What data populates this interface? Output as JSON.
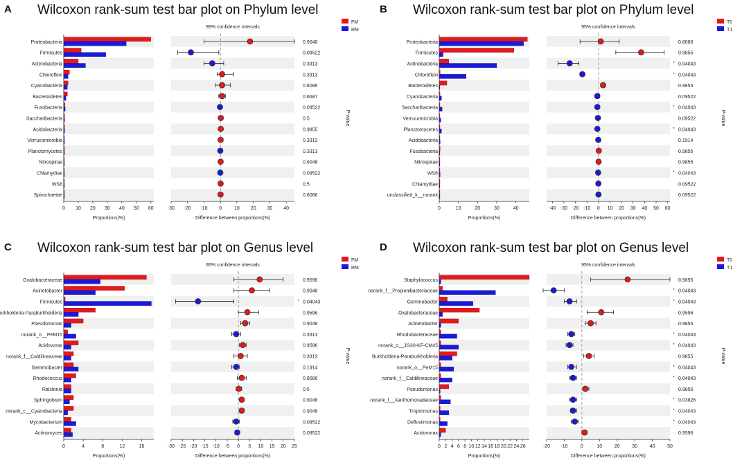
{
  "common": {
    "ci_header": "95% confidence intervals",
    "xlabel_bar": "Proportions(%)",
    "xlabel_diff": "Difference between proportions(%)",
    "pvalue_label": "P-value",
    "colors": {
      "red": "#e3191c",
      "blue": "#1a1adb"
    }
  },
  "chart_data": [
    {
      "id": "A",
      "type": "bar",
      "letter": "A",
      "title": "Wilcoxon rank-sum test bar plot on Phylum level",
      "legend": [
        "FM",
        "RM"
      ],
      "categories": [
        "Proteobacteria",
        "Firmicutes",
        "Actinobacteria",
        "Chloroflexi",
        "Cyanobacteria",
        "Bacteroidetes",
        "Fusobacteria",
        "Saccharibacteria",
        "Acidobacteria",
        "Verrucomicrobia",
        "Planctomycetes",
        "Nitrospirae",
        "Chlamydiae",
        "WS6",
        "Spirochaetae"
      ],
      "series": [
        {
          "name": "FM",
          "values": [
            60,
            12,
            10,
            4,
            3,
            2.5,
            0.8,
            0.6,
            0.6,
            0.5,
            0.5,
            0.4,
            0.3,
            0.2,
            0.2
          ]
        },
        {
          "name": "RM",
          "values": [
            43,
            29,
            15,
            3,
            2.5,
            1.5,
            1.0,
            0.6,
            0.6,
            0.5,
            0.5,
            0.4,
            0.4,
            0.2,
            0.2
          ]
        }
      ],
      "bar_ticks": [
        0,
        10,
        20,
        30,
        40,
        50,
        60
      ],
      "bar_xlim": [
        0,
        62
      ],
      "diff_ticks": [
        -30,
        -20,
        -10,
        0,
        10,
        20,
        30,
        40
      ],
      "diff_xlim": [
        -30,
        45
      ],
      "diff": [
        {
          "est": 18,
          "lo": -10,
          "hi": 45,
          "group": "FM"
        },
        {
          "est": -18,
          "lo": -26,
          "hi": -1,
          "group": "RM"
        },
        {
          "est": -5,
          "lo": -10,
          "hi": 2,
          "group": "RM"
        },
        {
          "est": 1,
          "lo": -2,
          "hi": 8,
          "group": "FM"
        },
        {
          "est": 1,
          "lo": -3,
          "hi": 6,
          "group": "FM"
        },
        {
          "est": 1,
          "lo": -1,
          "hi": 3,
          "group": "FM"
        },
        {
          "est": -0.3,
          "lo": -1,
          "hi": 0.5,
          "group": "RM"
        },
        {
          "est": 0.2,
          "lo": -0.5,
          "hi": 0.8,
          "group": "FM"
        },
        {
          "est": 0.2,
          "lo": -0.5,
          "hi": 0.8,
          "group": "FM"
        },
        {
          "est": 0.1,
          "lo": -0.5,
          "hi": 0.6,
          "group": "FM"
        },
        {
          "est": -0.1,
          "lo": -0.6,
          "hi": 0.5,
          "group": "RM"
        },
        {
          "est": 0.1,
          "lo": -0.5,
          "hi": 0.6,
          "group": "FM"
        },
        {
          "est": -0.1,
          "lo": -0.5,
          "hi": 0.4,
          "group": "RM"
        },
        {
          "est": 0.1,
          "lo": -0.3,
          "hi": 0.4,
          "group": "FM"
        },
        {
          "est": 0.05,
          "lo": -0.3,
          "hi": 0.4,
          "group": "FM"
        }
      ],
      "pvalues": [
        "0.9048",
        "0.09522",
        "0.3313",
        "0.3313",
        "0.8086",
        "0.6687",
        "0.09522",
        "0.5",
        "0.9855",
        "0.3313",
        "0.3313",
        "0.9048",
        "0.09522",
        "0.5",
        "0.8086"
      ],
      "stars": []
    },
    {
      "id": "B",
      "type": "bar",
      "letter": "B",
      "title": "Wilcoxon rank-sum test bar plot on Phylum level",
      "legend": [
        "T0",
        "T1"
      ],
      "categories": [
        "Proteobacteria",
        "Firmicutes",
        "Actinobacteria",
        "Chloroflexi",
        "Bacteroidetes",
        "Cyanobacteria",
        "Saccharibacteria",
        "Verrucomicrobia",
        "Planctomycetes",
        "Acidobacteria",
        "Fusobacteria",
        "Nitrospirae",
        "WS6",
        "Chlamydiae",
        "unclassified_k__norank"
      ],
      "series": [
        {
          "name": "T0",
          "values": [
            46,
            39,
            5,
            0.5,
            4,
            0.4,
            0.3,
            0.3,
            0.3,
            0.3,
            0.5,
            0.2,
            0.2,
            0.1,
            0.1
          ]
        },
        {
          "name": "T1",
          "values": [
            44,
            2,
            30,
            14,
            0.3,
            1.2,
            1.5,
            0.8,
            1.2,
            0.5,
            0.3,
            0.2,
            0.5,
            0.2,
            0.1
          ]
        }
      ],
      "bar_ticks": [
        0,
        10,
        20,
        30,
        40
      ],
      "bar_xlim": [
        0,
        47
      ],
      "diff_ticks": [
        -40,
        -30,
        -20,
        -10,
        0,
        10,
        20,
        30,
        40,
        50,
        60
      ],
      "diff_xlim": [
        -45,
        62
      ],
      "diff": [
        {
          "est": 2,
          "lo": -16,
          "hi": 18,
          "group": "T0"
        },
        {
          "est": 37,
          "lo": 15,
          "hi": 57,
          "group": "T0"
        },
        {
          "est": -25,
          "lo": -35,
          "hi": -17,
          "group": "T1"
        },
        {
          "est": -14,
          "lo": -16,
          "hi": -12,
          "group": "T1"
        },
        {
          "est": 4,
          "lo": 2,
          "hi": 6,
          "group": "T0"
        },
        {
          "est": -1,
          "lo": -3,
          "hi": 1,
          "group": "T1"
        },
        {
          "est": -1,
          "lo": -2,
          "hi": 0,
          "group": "T1"
        },
        {
          "est": -0.5,
          "lo": -1.5,
          "hi": 0.5,
          "group": "T1"
        },
        {
          "est": -1,
          "lo": -2,
          "hi": 0,
          "group": "T1"
        },
        {
          "est": -0.2,
          "lo": -1,
          "hi": 0.5,
          "group": "T1"
        },
        {
          "est": 0.3,
          "lo": -0.5,
          "hi": 1,
          "group": "T0"
        },
        {
          "est": 0.1,
          "lo": -0.5,
          "hi": 0.6,
          "group": "T0"
        },
        {
          "est": -0.3,
          "lo": -1,
          "hi": 0.3,
          "group": "T1"
        },
        {
          "est": -0.1,
          "lo": -0.5,
          "hi": 0.3,
          "group": "T1"
        },
        {
          "est": 0,
          "lo": -0.3,
          "hi": 0.3,
          "group": "T1"
        }
      ],
      "pvalues": [
        "0.8086",
        "0.9855",
        "0.04043",
        "0.04043",
        "0.9855",
        "0.09522",
        "0.04043",
        "0.09522",
        "0.04043",
        "0.1914",
        "0.9855",
        "0.9855",
        "0.04043",
        "0.09522",
        "0.09522"
      ],
      "stars": [
        2,
        3,
        6,
        8,
        12
      ]
    },
    {
      "id": "C",
      "type": "bar",
      "letter": "C",
      "title": "Wilcoxon rank-sum test bar plot on Genus level",
      "legend": [
        "FM",
        "RM"
      ],
      "categories": [
        "Oxalobacteraceae",
        "Acinetobacter",
        "Firmicutes",
        "Burkholderia-Paraburkholderia",
        "Pseudomonas",
        "norank_o__PeM15",
        "Acidovorax",
        "norank_f__Caldilineaceae",
        "Gemmobacter",
        "Rhodococcus",
        "Ralstonia",
        "Sphingobium",
        "norank_c__Cyanobacteria",
        "Mycobacterium",
        "Actinomyces"
      ],
      "series": [
        {
          "name": "FM",
          "values": [
            17,
            12.5,
            0.3,
            6.5,
            4,
            0.8,
            3,
            2,
            2,
            2.5,
            1.5,
            2,
            2,
            1.5,
            1.5
          ]
        },
        {
          "name": "RM",
          "values": [
            7.5,
            6.5,
            18,
            3,
            1.5,
            2.5,
            1.5,
            1.5,
            3,
            1.5,
            1.5,
            1.2,
            0.8,
            2.5,
            1.8
          ]
        }
      ],
      "bar_ticks": [
        0,
        4,
        8,
        12,
        16
      ],
      "bar_xlim": [
        0,
        18.5
      ],
      "diff_ticks": [
        -30,
        -25,
        -20,
        -15,
        -10,
        -5,
        0,
        5,
        10,
        15,
        20,
        25
      ],
      "diff_xlim": [
        -30,
        25
      ],
      "diff": [
        {
          "est": 9.5,
          "lo": -2,
          "hi": 20,
          "group": "FM"
        },
        {
          "est": 6,
          "lo": -2,
          "hi": 14,
          "group": "FM"
        },
        {
          "est": -18,
          "lo": -28,
          "hi": -2,
          "group": "RM"
        },
        {
          "est": 4,
          "lo": 0,
          "hi": 9,
          "group": "FM"
        },
        {
          "est": 3,
          "lo": 1,
          "hi": 5,
          "group": "FM"
        },
        {
          "est": -1,
          "lo": -3,
          "hi": 1,
          "group": "RM"
        },
        {
          "est": 2,
          "lo": 0.5,
          "hi": 3.5,
          "group": "FM"
        },
        {
          "est": 1,
          "lo": -2,
          "hi": 4,
          "group": "FM"
        },
        {
          "est": -1,
          "lo": -3,
          "hi": 0.5,
          "group": "RM"
        },
        {
          "est": 1.5,
          "lo": -0.5,
          "hi": 3.5,
          "group": "FM"
        },
        {
          "est": 0.2,
          "lo": -1,
          "hi": 1.5,
          "group": "FM"
        },
        {
          "est": 1.5,
          "lo": 0.5,
          "hi": 2.5,
          "group": "FM"
        },
        {
          "est": 1.5,
          "lo": 0.5,
          "hi": 2.5,
          "group": "FM"
        },
        {
          "est": -1,
          "lo": -2.5,
          "hi": 0.5,
          "group": "RM"
        },
        {
          "est": -0.5,
          "lo": -1.5,
          "hi": 0.5,
          "group": "RM"
        }
      ],
      "pvalues": [
        "0.9596",
        "0.9048",
        "0.04043",
        "0.9596",
        "0.9048",
        "0.3313",
        "0.9596",
        "0.3313",
        "0.1914",
        "0.8086",
        "0.5",
        "0.9048",
        "0.9048",
        "0.09522",
        "0.09522"
      ],
      "stars": [
        2
      ]
    },
    {
      "id": "D",
      "type": "bar",
      "letter": "D",
      "title": "Wilcoxon rank-sum test bar plot on Genus level",
      "legend": [
        "T0",
        "T1"
      ],
      "categories": [
        "Staphylococcus",
        "norank_f__Propionibacteriaceae",
        "Gemmobacter",
        "Oxalobacteraceae",
        "Acinetobacter",
        "Rhodobacteraceae",
        "norank_o__JG30-KF-CM45",
        "Burkholderia-Paraburkholderia",
        "norank_o__PeM15",
        "norank_f__Caldilineaceae",
        "Pseudomonas",
        "norank_f__Xanthomonadaceae",
        "Tropicimonas",
        "Defluviimonas",
        "Acidovorax"
      ],
      "series": [
        {
          "name": "T0",
          "values": [
            28,
            1,
            2.5,
            12.5,
            6,
            0.5,
            0.5,
            5.5,
            0.5,
            0.5,
            3,
            0.5,
            0.3,
            0.3,
            2
          ]
        },
        {
          "name": "T1",
          "values": [
            0.5,
            17.5,
            10.5,
            1,
            0.5,
            5.5,
            6,
            4,
            4.5,
            4,
            0.3,
            3.5,
            3,
            2.5,
            0.5
          ]
        }
      ],
      "bar_ticks": [
        0,
        2,
        4,
        6,
        8,
        10,
        12,
        14,
        16,
        18,
        20,
        22,
        24,
        26
      ],
      "bar_xlim": [
        0,
        28
      ],
      "diff_ticks": [
        -20,
        -10,
        0,
        10,
        20,
        30,
        40,
        50
      ],
      "diff_xlim": [
        -20,
        50
      ],
      "diff": [
        {
          "est": 26,
          "lo": 5,
          "hi": 50,
          "group": "T0"
        },
        {
          "est": -16,
          "lo": -22,
          "hi": -10,
          "group": "T1"
        },
        {
          "est": -7,
          "lo": -10,
          "hi": -3,
          "group": "T1"
        },
        {
          "est": 11,
          "lo": 3,
          "hi": 18,
          "group": "T0"
        },
        {
          "est": 5,
          "lo": 2,
          "hi": 8,
          "group": "T0"
        },
        {
          "est": -6,
          "lo": -8,
          "hi": -4,
          "group": "T1"
        },
        {
          "est": -7,
          "lo": -9,
          "hi": -5,
          "group": "T1"
        },
        {
          "est": 4,
          "lo": 1,
          "hi": 7,
          "group": "T0"
        },
        {
          "est": -6,
          "lo": -8,
          "hi": -3,
          "group": "T1"
        },
        {
          "est": -5,
          "lo": -7,
          "hi": -3,
          "group": "T1"
        },
        {
          "est": 2,
          "lo": 0.5,
          "hi": 4,
          "group": "T0"
        },
        {
          "est": -5,
          "lo": -7,
          "hi": -3,
          "group": "T1"
        },
        {
          "est": -5,
          "lo": -6.5,
          "hi": -3,
          "group": "T1"
        },
        {
          "est": -4,
          "lo": -6,
          "hi": -2,
          "group": "T1"
        },
        {
          "est": 1.5,
          "lo": 0,
          "hi": 3,
          "group": "T0"
        }
      ],
      "pvalues": [
        "0.9855",
        "0.04043",
        "0.04043",
        "0.9596",
        "0.9855",
        "0.04043",
        "0.04043",
        "0.9855",
        "0.04043",
        "0.04043",
        "0.9855",
        "0.03826",
        "0.04043",
        "0.04043",
        "0.9596"
      ],
      "stars": [
        1,
        2,
        5,
        6,
        8,
        9,
        11,
        12,
        13
      ]
    }
  ]
}
